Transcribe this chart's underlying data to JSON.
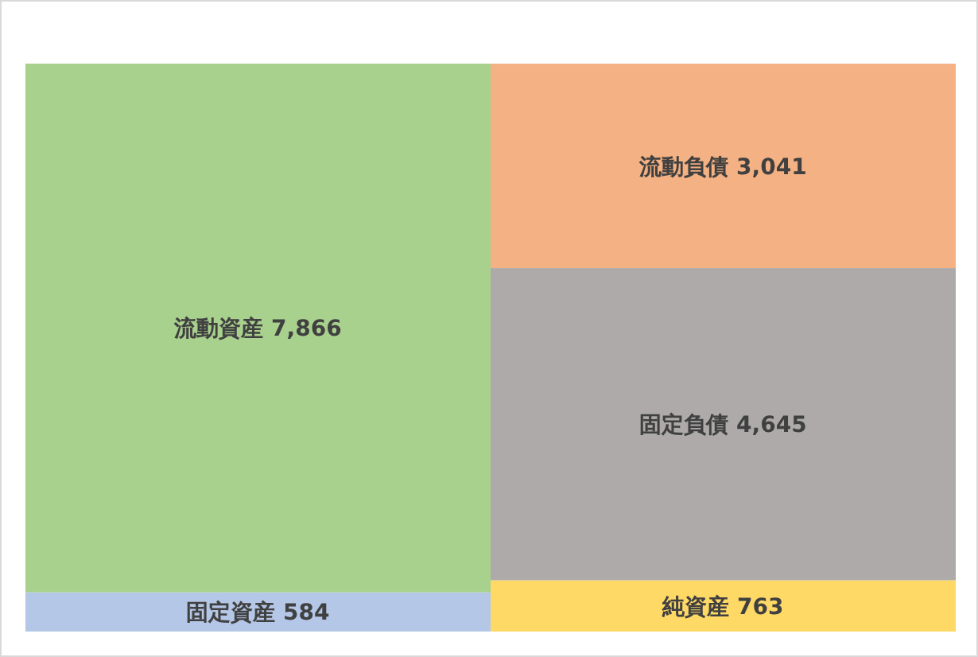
{
  "chart_data": {
    "type": "bar",
    "stacked": true,
    "categories": [
      null,
      null
    ],
    "series": [
      {
        "name": "固定資産",
        "color": "#b4c7e7",
        "values": [
          584,
          null
        ],
        "value_labels": [
          "584",
          null
        ]
      },
      {
        "name": "流動資産",
        "color": "#a9d18e",
        "values": [
          7866,
          null
        ],
        "value_labels": [
          "7,866",
          null
        ]
      },
      {
        "name": "純資産",
        "color": "#ffd966",
        "values": [
          null,
          763
        ],
        "value_labels": [
          null,
          "763"
        ]
      },
      {
        "name": "固定負債",
        "color": "#aeaaaa",
        "values": [
          null,
          4645
        ],
        "value_labels": [
          null,
          "4,645"
        ]
      },
      {
        "name": "流動負債",
        "color": "#f4b183",
        "values": [
          null,
          3041
        ],
        "value_labels": [
          null,
          "3,041"
        ]
      }
    ]
  }
}
